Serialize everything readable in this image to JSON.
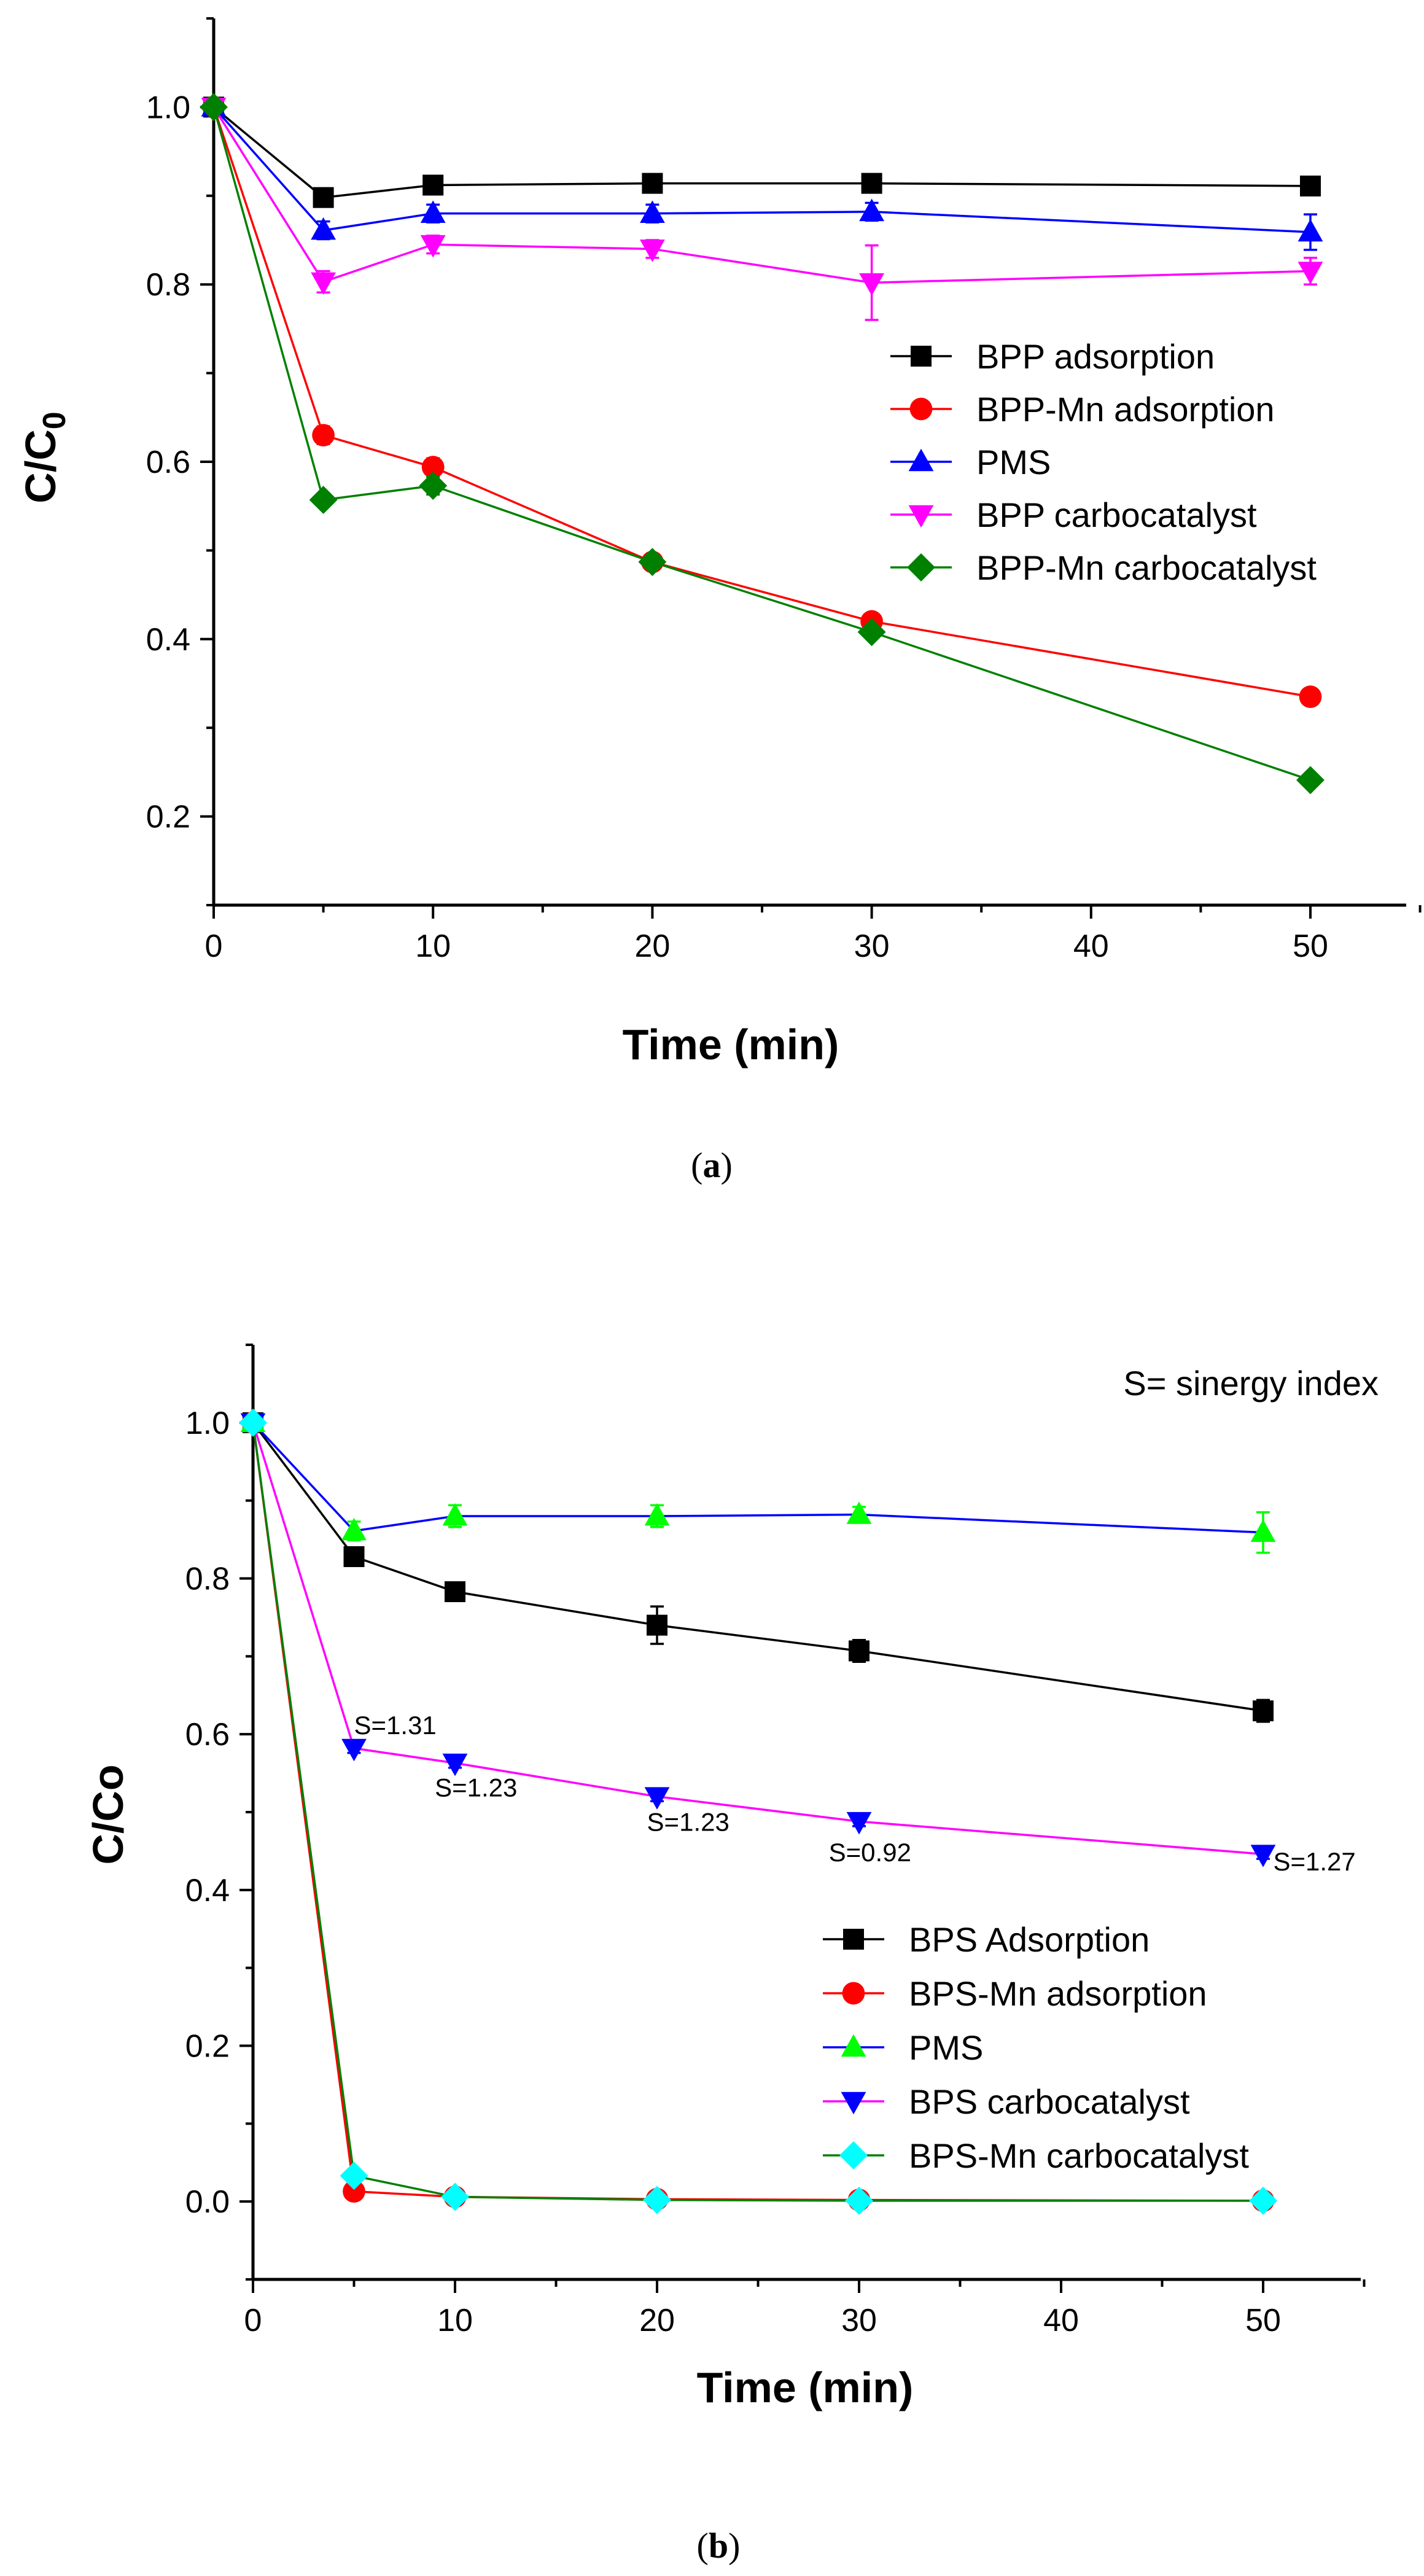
{
  "charts": [
    {
      "type": "line",
      "title": "",
      "xlabel": "Time (min)",
      "ylabel": "C/C",
      "ylabel_sub": "0",
      "xlim": [
        0,
        55
      ],
      "ylim": [
        0.1,
        1.1
      ],
      "xticks": [
        "0",
        "10",
        "20",
        "30",
        "40",
        "50"
      ],
      "yticks": [
        "0.2",
        "0.4",
        "0.6",
        "0.8",
        "1.0"
      ],
      "caption_open": "(",
      "caption_letter": "a",
      "caption_close": ")",
      "legend": "right-middle",
      "note": "",
      "x": [
        0,
        5,
        10,
        20,
        30,
        50
      ],
      "series": [
        {
          "name": "BPP adsorption",
          "color": "#000000",
          "marker": "square",
          "values": [
            1.0,
            0.898,
            0.912,
            0.914,
            0.914,
            0.911
          ],
          "errors": [
            0,
            0.01,
            0.006,
            0.006,
            0.006,
            0.006
          ]
        },
        {
          "name": "BPP-Mn adsorption",
          "color": "#ff0000",
          "marker": "circle",
          "values": [
            1.0,
            0.63,
            0.594,
            0.487,
            0.42,
            0.335
          ],
          "errors": [
            0,
            0.01,
            0.01,
            0.006,
            0.006,
            0.008
          ]
        },
        {
          "name": "PMS",
          "color": "#0000ff",
          "marker": "triangle-up",
          "values": [
            1.0,
            0.861,
            0.88,
            0.88,
            0.882,
            0.859
          ],
          "errors": [
            0,
            0.01,
            0.01,
            0.01,
            0.01,
            0.02
          ]
        },
        {
          "name": "BPP carbocatalyst",
          "color": "#ff00ff",
          "marker": "triangle-down",
          "values": [
            1.0,
            0.803,
            0.845,
            0.84,
            0.802,
            0.815
          ],
          "errors": [
            0,
            0.012,
            0.01,
            0.01,
            0.042,
            0.015
          ]
        },
        {
          "name": "BPP-Mn carbocatalyst",
          "color": "#008000",
          "marker": "diamond",
          "values": [
            1.0,
            0.557,
            0.573,
            0.487,
            0.408,
            0.241
          ],
          "errors": [
            0,
            0.006,
            0.01,
            0.006,
            0.006,
            0.006
          ]
        }
      ],
      "annotations": []
    },
    {
      "type": "line",
      "title": "",
      "xlabel": "Time (min)",
      "ylabel": "C/Co",
      "ylabel_sub": "",
      "xlim": [
        0,
        55
      ],
      "ylim": [
        -0.1,
        1.1
      ],
      "xticks": [
        "0",
        "10",
        "20",
        "30",
        "40",
        "50"
      ],
      "yticks": [
        "0.0",
        "0.2",
        "0.4",
        "0.6",
        "0.8",
        "1.0"
      ],
      "caption_open": "(",
      "caption_letter": "b",
      "caption_close": ")",
      "legend": "bottom-right",
      "note": "S= sinergy index",
      "x": [
        0,
        5,
        10,
        20,
        30,
        50
      ],
      "series": [
        {
          "name": "BPS Adsorption",
          "color": "#000000",
          "marker": "square",
          "values": [
            1.0,
            0.828,
            0.783,
            0.74,
            0.707,
            0.63
          ],
          "errors": [
            0,
            0.01,
            0.008,
            0.024,
            0.014,
            0.014
          ]
        },
        {
          "name": "BPS-Mn adsorption",
          "color": "#ff0000",
          "marker": "circle",
          "values": [
            1.0,
            0.013,
            0.006,
            0.003,
            0.002,
            0.001
          ],
          "errors": [
            0,
            0,
            0,
            0,
            0,
            0
          ]
        },
        {
          "name": "PMS",
          "color": "#00ff00",
          "marker": "triangle-up",
          "line_color": "#0000ff",
          "values": [
            1.0,
            0.861,
            0.88,
            0.88,
            0.882,
            0.859
          ],
          "errors": [
            0,
            0.012,
            0.014,
            0.014,
            0.01,
            0.026
          ]
        },
        {
          "name": "BPS carbocatalyst",
          "color": "#0000ff",
          "marker": "triangle-down",
          "line_color": "#ff00ff",
          "values": [
            1.0,
            0.582,
            0.563,
            0.52,
            0.488,
            0.446
          ],
          "errors": [
            0,
            0.006,
            0.006,
            0.006,
            0.006,
            0.006
          ]
        },
        {
          "name": "BPS-Mn carbocatalyst",
          "color": "#00ffff",
          "marker": "diamond",
          "line_color": "#008000",
          "values": [
            1.0,
            0.033,
            0.006,
            0.002,
            0.001,
            0.001
          ],
          "errors": [
            0,
            0,
            0,
            0,
            0,
            0
          ]
        }
      ],
      "annotations": [
        {
          "text": "S=1.31",
          "x": 5,
          "y": 0.611
        },
        {
          "text": "S=1.23",
          "x": 9,
          "y": 0.531
        },
        {
          "text": "S=1.23",
          "x": 19.5,
          "y": 0.487
        },
        {
          "text": "S=0.92",
          "x": 28.5,
          "y": 0.448
        },
        {
          "text": "S=1.27",
          "x": 50.5,
          "y": 0.436
        }
      ]
    }
  ]
}
